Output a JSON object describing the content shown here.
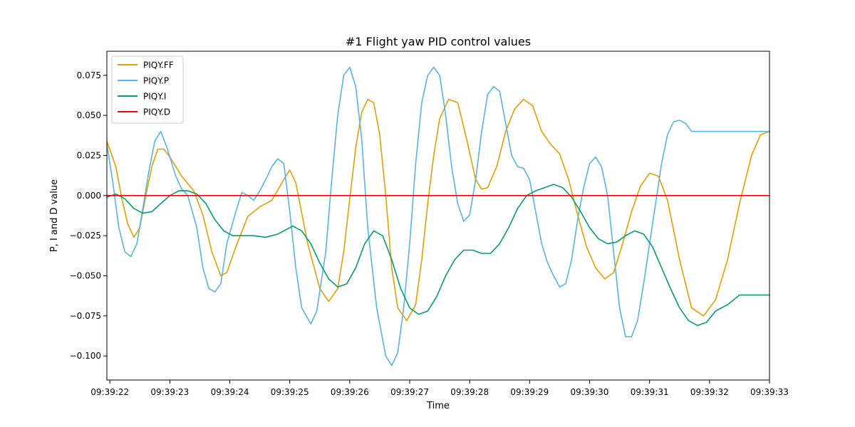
{
  "chart_data": {
    "type": "line",
    "title": "#1 Flight yaw PID control values",
    "xlabel": "Time",
    "ylabel": "P, I and D value",
    "x_unit": "seconds",
    "xlim": [
      -0.05,
      11.0
    ],
    "ylim": [
      -0.115,
      0.09
    ],
    "x_ticks": [
      {
        "value": 0,
        "label": "09:39:22"
      },
      {
        "value": 1,
        "label": "09:39:23"
      },
      {
        "value": 2,
        "label": "09:39:24"
      },
      {
        "value": 3,
        "label": "09:39:25"
      },
      {
        "value": 4,
        "label": "09:39:26"
      },
      {
        "value": 5,
        "label": "09:39:27"
      },
      {
        "value": 6,
        "label": "09:39:28"
      },
      {
        "value": 7,
        "label": "09:39:29"
      },
      {
        "value": 8,
        "label": "09:39:30"
      },
      {
        "value": 9,
        "label": "09:39:31"
      },
      {
        "value": 10,
        "label": "09:39:32"
      },
      {
        "value": 11,
        "label": "09:39:33"
      }
    ],
    "y_ticks": [
      {
        "value": 0.075,
        "label": "0.075"
      },
      {
        "value": 0.05,
        "label": "0.050"
      },
      {
        "value": 0.025,
        "label": "0.025"
      },
      {
        "value": 0.0,
        "label": "0.000"
      },
      {
        "value": -0.025,
        "label": "−0.025"
      },
      {
        "value": -0.05,
        "label": "−0.050"
      },
      {
        "value": -0.075,
        "label": "−0.075"
      },
      {
        "value": -0.1,
        "label": "−0.100"
      }
    ],
    "legend_position": "top-left",
    "grid": false,
    "series": [
      {
        "name": "PIQY.FF",
        "color": "#E69F00",
        "points": [
          [
            -0.05,
            0.034
          ],
          [
            0.1,
            0.018
          ],
          [
            0.2,
            -0.002
          ],
          [
            0.3,
            -0.018
          ],
          [
            0.4,
            -0.026
          ],
          [
            0.5,
            -0.02
          ],
          [
            0.6,
            0.0
          ],
          [
            0.7,
            0.018
          ],
          [
            0.8,
            0.029
          ],
          [
            0.9,
            0.029
          ],
          [
            1.0,
            0.024
          ],
          [
            1.2,
            0.012
          ],
          [
            1.4,
            0.003
          ],
          [
            1.55,
            -0.012
          ],
          [
            1.7,
            -0.035
          ],
          [
            1.85,
            -0.05
          ],
          [
            1.95,
            -0.048
          ],
          [
            2.1,
            -0.032
          ],
          [
            2.3,
            -0.013
          ],
          [
            2.5,
            -0.007
          ],
          [
            2.7,
            -0.003
          ],
          [
            2.9,
            0.01
          ],
          [
            3.0,
            0.016
          ],
          [
            3.1,
            0.008
          ],
          [
            3.3,
            -0.03
          ],
          [
            3.5,
            -0.058
          ],
          [
            3.65,
            -0.066
          ],
          [
            3.8,
            -0.058
          ],
          [
            3.9,
            -0.035
          ],
          [
            4.0,
            -0.002
          ],
          [
            4.1,
            0.03
          ],
          [
            4.2,
            0.052
          ],
          [
            4.3,
            0.06
          ],
          [
            4.4,
            0.058
          ],
          [
            4.5,
            0.038
          ],
          [
            4.6,
            0.0
          ],
          [
            4.7,
            -0.045
          ],
          [
            4.8,
            -0.07
          ],
          [
            4.95,
            -0.078
          ],
          [
            5.1,
            -0.068
          ],
          [
            5.2,
            -0.04
          ],
          [
            5.3,
            -0.005
          ],
          [
            5.4,
            0.025
          ],
          [
            5.5,
            0.048
          ],
          [
            5.65,
            0.06
          ],
          [
            5.8,
            0.058
          ],
          [
            5.95,
            0.035
          ],
          [
            6.1,
            0.01
          ],
          [
            6.2,
            0.004
          ],
          [
            6.3,
            0.005
          ],
          [
            6.45,
            0.018
          ],
          [
            6.6,
            0.04
          ],
          [
            6.75,
            0.054
          ],
          [
            6.9,
            0.06
          ],
          [
            7.05,
            0.056
          ],
          [
            7.2,
            0.04
          ],
          [
            7.35,
            0.032
          ],
          [
            7.5,
            0.026
          ],
          [
            7.65,
            0.01
          ],
          [
            7.8,
            -0.012
          ],
          [
            7.95,
            -0.032
          ],
          [
            8.1,
            -0.045
          ],
          [
            8.25,
            -0.052
          ],
          [
            8.4,
            -0.048
          ],
          [
            8.55,
            -0.03
          ],
          [
            8.7,
            -0.01
          ],
          [
            8.85,
            0.006
          ],
          [
            9.0,
            0.014
          ],
          [
            9.15,
            0.012
          ],
          [
            9.3,
            -0.003
          ],
          [
            9.5,
            -0.04
          ],
          [
            9.7,
            -0.07
          ],
          [
            9.9,
            -0.075
          ],
          [
            10.1,
            -0.065
          ],
          [
            10.3,
            -0.04
          ],
          [
            10.5,
            -0.005
          ],
          [
            10.7,
            0.025
          ],
          [
            10.85,
            0.038
          ],
          [
            11.0,
            0.04
          ]
        ]
      },
      {
        "name": "PIQY.P",
        "color": "#56B4E9",
        "points": [
          [
            -0.05,
            0.032
          ],
          [
            0.05,
            0.008
          ],
          [
            0.15,
            -0.02
          ],
          [
            0.25,
            -0.035
          ],
          [
            0.35,
            -0.038
          ],
          [
            0.45,
            -0.03
          ],
          [
            0.55,
            -0.008
          ],
          [
            0.65,
            0.015
          ],
          [
            0.75,
            0.034
          ],
          [
            0.85,
            0.04
          ],
          [
            0.95,
            0.03
          ],
          [
            1.1,
            0.012
          ],
          [
            1.2,
            0.004
          ],
          [
            1.3,
            0.0
          ],
          [
            1.45,
            -0.02
          ],
          [
            1.55,
            -0.045
          ],
          [
            1.65,
            -0.058
          ],
          [
            1.75,
            -0.06
          ],
          [
            1.85,
            -0.055
          ],
          [
            1.95,
            -0.03
          ],
          [
            2.1,
            -0.01
          ],
          [
            2.2,
            0.002
          ],
          [
            2.3,
            0.0
          ],
          [
            2.4,
            -0.003
          ],
          [
            2.5,
            0.003
          ],
          [
            2.6,
            0.01
          ],
          [
            2.7,
            0.018
          ],
          [
            2.8,
            0.023
          ],
          [
            2.9,
            0.02
          ],
          [
            3.0,
            -0.01
          ],
          [
            3.1,
            -0.045
          ],
          [
            3.2,
            -0.07
          ],
          [
            3.35,
            -0.08
          ],
          [
            3.45,
            -0.072
          ],
          [
            3.6,
            -0.035
          ],
          [
            3.7,
            0.01
          ],
          [
            3.8,
            0.05
          ],
          [
            3.9,
            0.075
          ],
          [
            4.0,
            0.08
          ],
          [
            4.1,
            0.068
          ],
          [
            4.2,
            0.035
          ],
          [
            4.3,
            -0.02
          ],
          [
            4.45,
            -0.07
          ],
          [
            4.6,
            -0.1
          ],
          [
            4.7,
            -0.106
          ],
          [
            4.8,
            -0.098
          ],
          [
            4.9,
            -0.07
          ],
          [
            5.0,
            -0.03
          ],
          [
            5.1,
            0.02
          ],
          [
            5.2,
            0.058
          ],
          [
            5.3,
            0.075
          ],
          [
            5.4,
            0.08
          ],
          [
            5.5,
            0.075
          ],
          [
            5.6,
            0.05
          ],
          [
            5.7,
            0.018
          ],
          [
            5.8,
            -0.005
          ],
          [
            5.9,
            -0.016
          ],
          [
            6.0,
            -0.012
          ],
          [
            6.1,
            0.01
          ],
          [
            6.2,
            0.04
          ],
          [
            6.3,
            0.063
          ],
          [
            6.4,
            0.068
          ],
          [
            6.5,
            0.065
          ],
          [
            6.6,
            0.045
          ],
          [
            6.7,
            0.025
          ],
          [
            6.8,
            0.018
          ],
          [
            6.9,
            0.017
          ],
          [
            7.0,
            0.01
          ],
          [
            7.1,
            -0.01
          ],
          [
            7.2,
            -0.03
          ],
          [
            7.3,
            -0.042
          ],
          [
            7.4,
            -0.05
          ],
          [
            7.5,
            -0.057
          ],
          [
            7.6,
            -0.055
          ],
          [
            7.7,
            -0.04
          ],
          [
            7.8,
            -0.015
          ],
          [
            7.9,
            0.005
          ],
          [
            8.0,
            0.02
          ],
          [
            8.1,
            0.024
          ],
          [
            8.2,
            0.018
          ],
          [
            8.3,
            0.0
          ],
          [
            8.4,
            -0.035
          ],
          [
            8.5,
            -0.07
          ],
          [
            8.6,
            -0.088
          ],
          [
            8.7,
            -0.088
          ],
          [
            8.8,
            -0.078
          ],
          [
            8.9,
            -0.055
          ],
          [
            9.0,
            -0.03
          ],
          [
            9.1,
            -0.005
          ],
          [
            9.2,
            0.02
          ],
          [
            9.3,
            0.038
          ],
          [
            9.4,
            0.046
          ],
          [
            9.5,
            0.047
          ],
          [
            9.6,
            0.045
          ],
          [
            9.7,
            0.04
          ],
          [
            11.0,
            0.04
          ]
        ]
      },
      {
        "name": "PIQY.I",
        "color": "#009E73",
        "points": [
          [
            -0.05,
            -0.001
          ],
          [
            0.1,
            0.001
          ],
          [
            0.25,
            -0.002
          ],
          [
            0.4,
            -0.008
          ],
          [
            0.55,
            -0.011
          ],
          [
            0.7,
            -0.01
          ],
          [
            0.85,
            -0.005
          ],
          [
            1.0,
            0.0
          ],
          [
            1.15,
            0.003
          ],
          [
            1.3,
            0.003
          ],
          [
            1.45,
            0.001
          ],
          [
            1.6,
            -0.005
          ],
          [
            1.75,
            -0.015
          ],
          [
            1.9,
            -0.022
          ],
          [
            2.05,
            -0.025
          ],
          [
            2.2,
            -0.025
          ],
          [
            2.4,
            -0.025
          ],
          [
            2.6,
            -0.026
          ],
          [
            2.8,
            -0.024
          ],
          [
            2.95,
            -0.021
          ],
          [
            3.05,
            -0.019
          ],
          [
            3.2,
            -0.022
          ],
          [
            3.35,
            -0.03
          ],
          [
            3.5,
            -0.042
          ],
          [
            3.65,
            -0.052
          ],
          [
            3.8,
            -0.057
          ],
          [
            3.95,
            -0.055
          ],
          [
            4.1,
            -0.045
          ],
          [
            4.25,
            -0.03
          ],
          [
            4.4,
            -0.022
          ],
          [
            4.55,
            -0.025
          ],
          [
            4.7,
            -0.04
          ],
          [
            4.85,
            -0.058
          ],
          [
            5.0,
            -0.07
          ],
          [
            5.15,
            -0.074
          ],
          [
            5.3,
            -0.072
          ],
          [
            5.45,
            -0.063
          ],
          [
            5.6,
            -0.05
          ],
          [
            5.75,
            -0.04
          ],
          [
            5.9,
            -0.034
          ],
          [
            6.05,
            -0.034
          ],
          [
            6.2,
            -0.036
          ],
          [
            6.35,
            -0.036
          ],
          [
            6.5,
            -0.03
          ],
          [
            6.65,
            -0.02
          ],
          [
            6.8,
            -0.008
          ],
          [
            6.95,
            0.0
          ],
          [
            7.1,
            0.003
          ],
          [
            7.25,
            0.005
          ],
          [
            7.4,
            0.007
          ],
          [
            7.55,
            0.005
          ],
          [
            7.7,
            -0.001
          ],
          [
            7.85,
            -0.01
          ],
          [
            8.0,
            -0.02
          ],
          [
            8.15,
            -0.027
          ],
          [
            8.3,
            -0.03
          ],
          [
            8.45,
            -0.029
          ],
          [
            8.6,
            -0.025
          ],
          [
            8.75,
            -0.022
          ],
          [
            8.9,
            -0.024
          ],
          [
            9.05,
            -0.032
          ],
          [
            9.2,
            -0.045
          ],
          [
            9.35,
            -0.058
          ],
          [
            9.5,
            -0.07
          ],
          [
            9.65,
            -0.078
          ],
          [
            9.8,
            -0.081
          ],
          [
            9.95,
            -0.079
          ],
          [
            10.1,
            -0.072
          ],
          [
            10.3,
            -0.068
          ],
          [
            10.5,
            -0.062
          ],
          [
            11.0,
            -0.062
          ]
        ]
      },
      {
        "name": "PIQY.D",
        "color": "#FF0000",
        "points": [
          [
            -0.05,
            0.0
          ],
          [
            11.0,
            0.0
          ]
        ]
      }
    ]
  }
}
